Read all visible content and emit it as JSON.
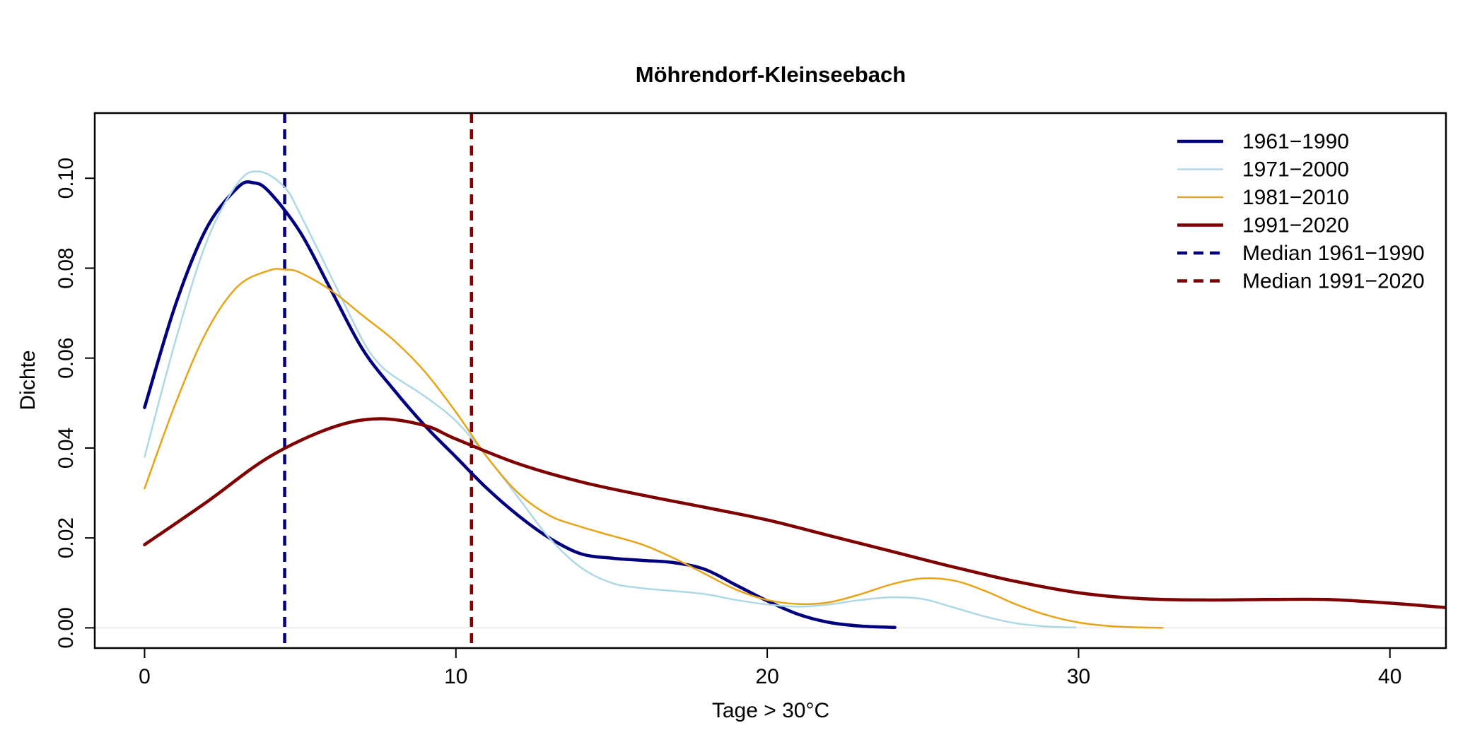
{
  "chart_data": {
    "type": "line",
    "title": "Möhrendorf-Kleinseebach",
    "xlabel": "Tage > 30°C",
    "ylabel": "Dichte",
    "xlim": [
      -1.6,
      41.8
    ],
    "ylim": [
      -0.0045,
      0.1145
    ],
    "xticks": [
      0,
      10,
      20,
      30,
      40
    ],
    "yticks": [
      0.0,
      0.02,
      0.04,
      0.06,
      0.08,
      0.1
    ],
    "xtick_labels": [
      "0",
      "10",
      "20",
      "30",
      "40"
    ],
    "ytick_labels": [
      "0.00",
      "0.02",
      "0.04",
      "0.06",
      "0.08",
      "0.10"
    ],
    "grid": false,
    "legend_position": "top-right",
    "baseline": 0,
    "series": [
      {
        "name": "1961−1990",
        "color": "#00007F",
        "width": 4.5,
        "x": [
          0,
          1,
          2,
          3,
          3.5,
          4,
          5,
          6,
          7,
          8,
          9,
          10,
          11,
          12,
          13,
          14,
          15,
          16,
          17,
          18,
          19,
          20,
          21,
          22,
          23,
          24.1
        ],
        "y": [
          0.049,
          0.072,
          0.089,
          0.098,
          0.099,
          0.097,
          0.088,
          0.075,
          0.062,
          0.053,
          0.045,
          0.038,
          0.031,
          0.025,
          0.02,
          0.0165,
          0.0155,
          0.015,
          0.0145,
          0.013,
          0.0095,
          0.006,
          0.003,
          0.0012,
          0.0004,
          0.0001
        ]
      },
      {
        "name": "1971−2000",
        "color": "#ADD8E6",
        "width": 2.5,
        "x": [
          0,
          1,
          2,
          3,
          3.7,
          4.5,
          5,
          6,
          7,
          7.5,
          8,
          9,
          10,
          11,
          12,
          13,
          14,
          15,
          16,
          17,
          18,
          19,
          20,
          21,
          22,
          23,
          24,
          25,
          26,
          27,
          28,
          29,
          29.9
        ],
        "y": [
          0.038,
          0.064,
          0.086,
          0.099,
          0.1015,
          0.098,
          0.092,
          0.078,
          0.064,
          0.059,
          0.056,
          0.0515,
          0.046,
          0.038,
          0.029,
          0.02,
          0.0135,
          0.01,
          0.0088,
          0.0082,
          0.0075,
          0.0062,
          0.0052,
          0.0047,
          0.0052,
          0.0062,
          0.0068,
          0.0064,
          0.0045,
          0.0025,
          0.001,
          0.0003,
          0.0001
        ]
      },
      {
        "name": "1981−2010",
        "color": "#E8A317",
        "width": 2.5,
        "x": [
          0,
          1,
          2,
          3,
          4,
          4.5,
          5,
          6,
          7,
          8,
          9,
          10,
          11,
          12,
          13,
          14,
          15,
          16,
          17,
          18,
          19,
          20,
          21,
          22,
          23,
          24,
          25,
          26,
          27,
          28,
          29,
          30,
          31,
          32,
          32.7
        ],
        "y": [
          0.031,
          0.05,
          0.066,
          0.076,
          0.0795,
          0.0797,
          0.079,
          0.075,
          0.0695,
          0.064,
          0.057,
          0.048,
          0.038,
          0.03,
          0.025,
          0.0225,
          0.0205,
          0.0185,
          0.0155,
          0.012,
          0.0085,
          0.0062,
          0.0053,
          0.0057,
          0.0075,
          0.0097,
          0.011,
          0.0105,
          0.0082,
          0.0052,
          0.0028,
          0.0012,
          0.0004,
          0.0001,
          0.0
        ]
      },
      {
        "name": "1991−2020",
        "color": "#7F0000",
        "width": 4.5,
        "x": [
          0,
          2,
          4,
          6,
          7.5,
          9,
          10,
          12,
          14,
          16,
          18,
          20,
          22,
          24,
          26,
          28,
          30,
          32,
          34,
          36,
          38,
          40,
          41.8
        ],
        "y": [
          0.0185,
          0.028,
          0.038,
          0.0445,
          0.0465,
          0.045,
          0.042,
          0.0365,
          0.0325,
          0.0295,
          0.0268,
          0.024,
          0.0205,
          0.017,
          0.0135,
          0.0103,
          0.0078,
          0.0065,
          0.0062,
          0.0063,
          0.0063,
          0.0055,
          0.0045
        ]
      }
    ],
    "medians": [
      {
        "name": "Median 1961−1990",
        "x": 4.5,
        "color": "#00007F"
      },
      {
        "name": "Median 1991−2020",
        "x": 10.5,
        "color": "#7F0000"
      }
    ]
  }
}
